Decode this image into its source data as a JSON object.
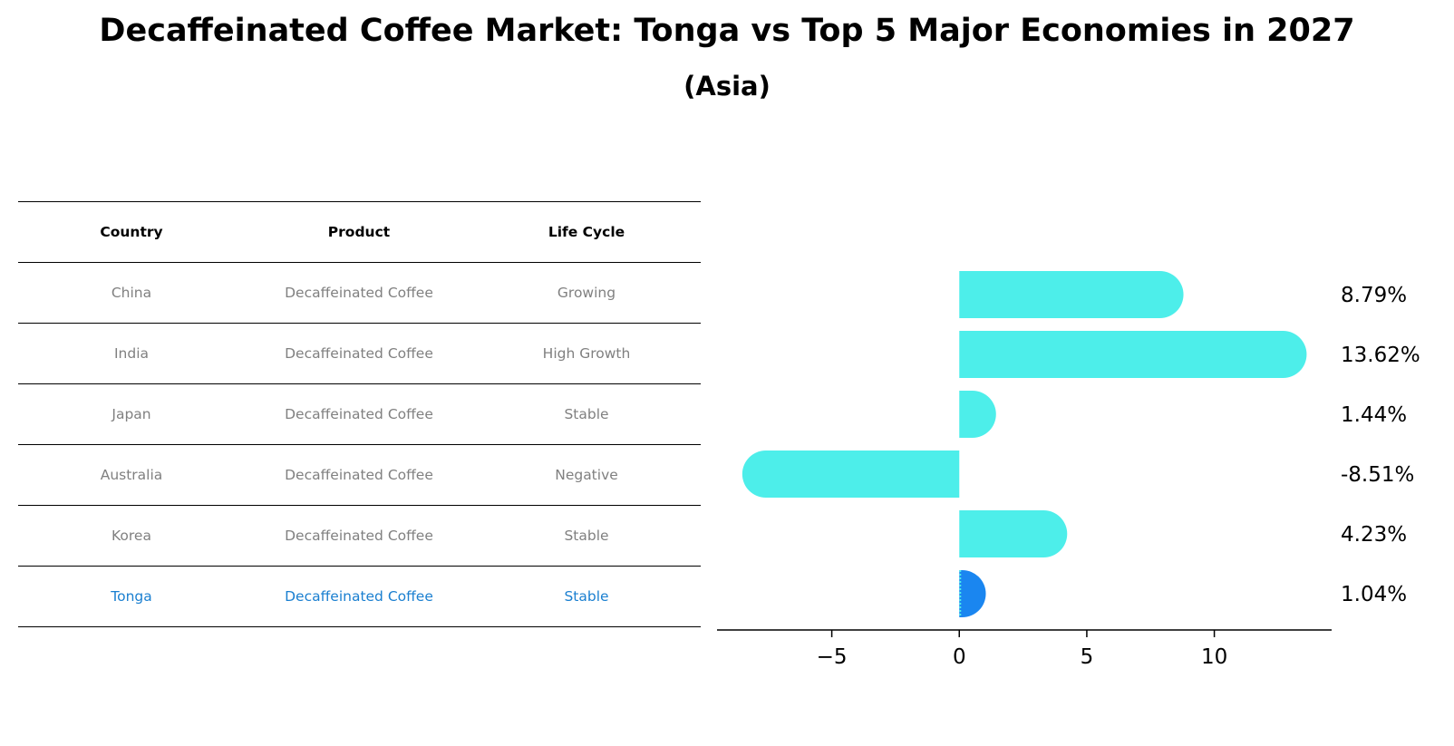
{
  "title": "Decaffeinated Coffee Market: Tonga vs Top 5 Major Economies in 2027",
  "subtitle": "(Asia)",
  "table": {
    "headers": [
      "Country",
      "Product",
      "Life Cycle"
    ],
    "rows": [
      [
        "China",
        "Decaffeinated Coffee",
        "Growing"
      ],
      [
        "India",
        "Decaffeinated Coffee",
        "High Growth"
      ],
      [
        "Japan",
        "Decaffeinated Coffee",
        "Stable"
      ],
      [
        "Australia",
        "Decaffeinated Coffee",
        "Negative"
      ],
      [
        "Korea",
        "Decaffeinated Coffee",
        "Stable"
      ],
      [
        "Tonga",
        "Decaffeinated Coffee",
        "Stable"
      ]
    ]
  },
  "chart_data": {
    "type": "bar",
    "orientation": "horizontal",
    "categories": [
      "China",
      "India",
      "Japan",
      "Australia",
      "Korea",
      "Tonga"
    ],
    "values": [
      8.79,
      13.62,
      1.44,
      -8.51,
      4.23,
      1.04
    ],
    "value_labels": [
      "8.79%",
      "13.62%",
      "1.44%",
      "-8.51%",
      "4.23%",
      "1.04%"
    ],
    "highlight": "Tonga",
    "xlim": [
      -9.5,
      14.6
    ],
    "xticks": [
      -5,
      0,
      5,
      10
    ],
    "xtick_labels": [
      "−5",
      "0",
      "5",
      "10"
    ],
    "colors": {
      "bar": "#4deeea",
      "highlight": "#1a86f0"
    }
  }
}
